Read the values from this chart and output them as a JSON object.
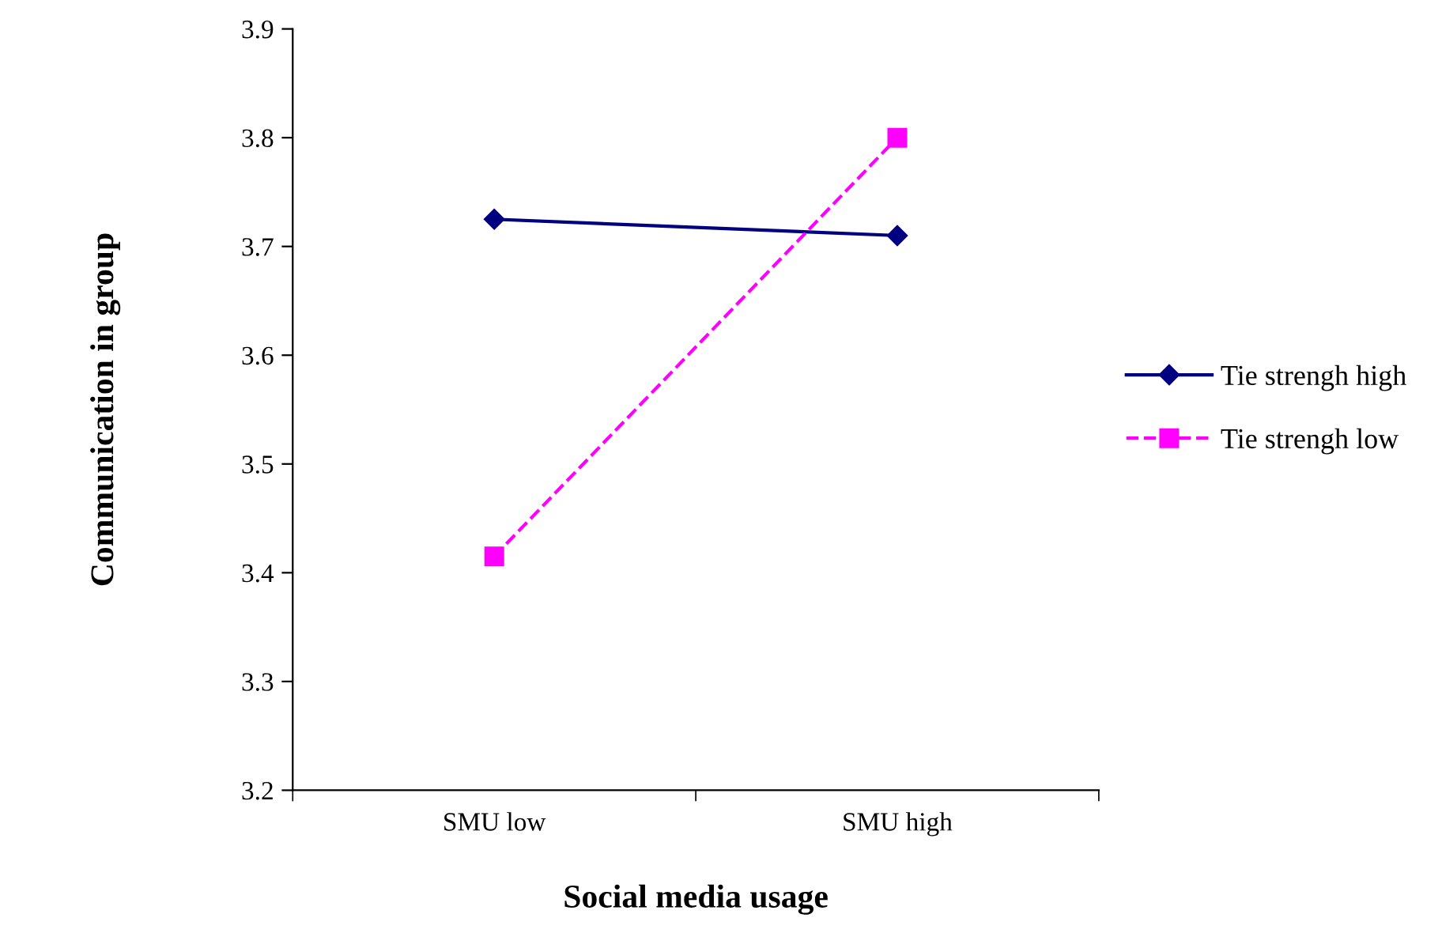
{
  "chart_data": {
    "type": "line",
    "xlabel": "Social media usage",
    "ylabel": "Communication in group",
    "categories": [
      "SMU low",
      "SMU high"
    ],
    "series": [
      {
        "name": "Tie strengh high",
        "color": "#000080",
        "values": [
          3.725,
          3.71
        ],
        "marker": "diamond",
        "line_style": "solid"
      },
      {
        "name": "Tie strengh low",
        "color": "#ff00ff",
        "values": [
          3.415,
          3.8
        ],
        "marker": "square",
        "line_style": "dashed"
      }
    ],
    "ylim": [
      3.2,
      3.9
    ],
    "yticks": [
      3.2,
      3.3,
      3.4,
      3.5,
      3.6,
      3.7,
      3.8,
      3.9
    ],
    "grid": false,
    "legend": "right"
  }
}
